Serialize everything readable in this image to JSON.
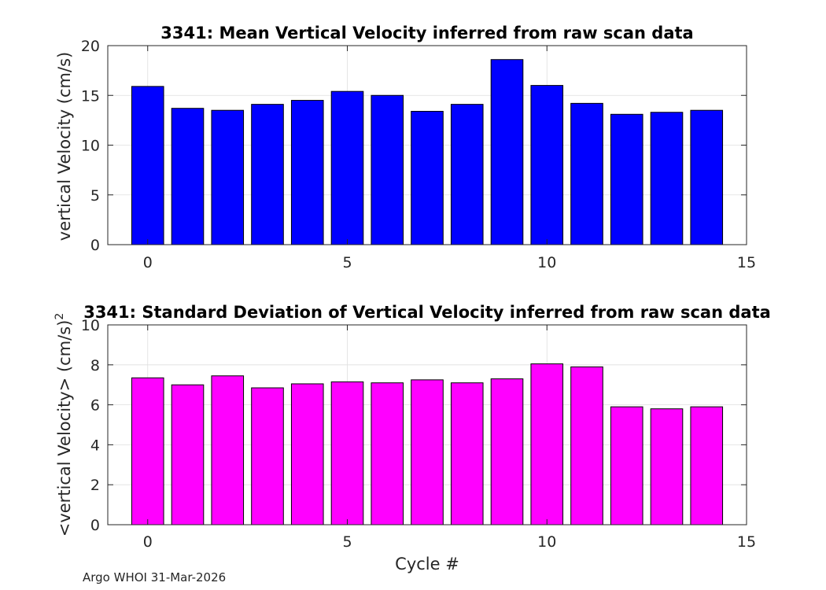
{
  "chart_data": [
    {
      "type": "bar",
      "title": "3341: Mean Vertical Velocity inferred from raw scan data",
      "xlabel": "",
      "ylabel": "vertical Velocity (cm/s)",
      "x": [
        0,
        1,
        2,
        3,
        4,
        5,
        6,
        7,
        8,
        9,
        10,
        11,
        12,
        13,
        14
      ],
      "values": [
        15.9,
        13.7,
        13.5,
        14.1,
        14.5,
        15.4,
        15.0,
        13.4,
        14.1,
        18.6,
        16.0,
        14.2,
        13.1,
        13.3,
        13.5
      ],
      "xlim": [
        -1,
        15
      ],
      "ylim": [
        0,
        20
      ],
      "xticks": [
        "0",
        "5",
        "10",
        "15"
      ],
      "yticks": [
        "0",
        "5",
        "10",
        "15",
        "20"
      ],
      "grid": true,
      "color": "#0000ff"
    },
    {
      "type": "bar",
      "title": "3341: Standard Deviation of Vertical Velocity inferred from raw scan data",
      "xlabel": "Cycle #",
      "ylabel": "<vertical Velocity> (cm/s)",
      "ylabel_superscript": "2",
      "x": [
        0,
        1,
        2,
        3,
        4,
        5,
        6,
        7,
        8,
        9,
        10,
        11,
        12,
        13,
        14
      ],
      "values": [
        7.35,
        7.0,
        7.45,
        6.85,
        7.05,
        7.15,
        7.1,
        7.25,
        7.1,
        7.3,
        8.05,
        7.9,
        5.9,
        5.8,
        5.9
      ],
      "xlim": [
        -1,
        15
      ],
      "ylim": [
        0,
        10
      ],
      "xticks": [
        "0",
        "5",
        "10",
        "15"
      ],
      "yticks": [
        "0",
        "2",
        "4",
        "6",
        "8",
        "10"
      ],
      "grid": true,
      "color": "#ff00ff"
    }
  ],
  "footer": "Argo WHOI 31-Mar-2026"
}
